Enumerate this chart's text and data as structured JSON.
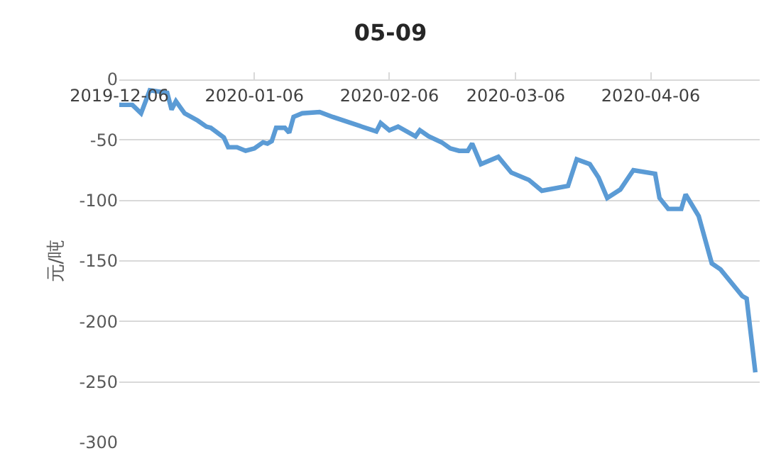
{
  "chart_data": {
    "type": "line",
    "title": "05-09",
    "ylabel": "元/吨",
    "x": [
      "2019-12-06",
      "2019-12-09",
      "2019-12-11",
      "2019-12-13",
      "2019-12-17",
      "2019-12-18",
      "2019-12-19",
      "2019-12-21",
      "2019-12-24",
      "2019-12-26",
      "2019-12-27",
      "2019-12-30",
      "2019-12-31",
      "2020-01-02",
      "2020-01-04",
      "2020-01-06",
      "2020-01-08",
      "2020-01-09",
      "2020-01-10",
      "2020-01-11",
      "2020-01-13",
      "2020-01-14",
      "2020-01-15",
      "2020-01-17",
      "2020-01-21",
      "2020-01-24",
      "2020-02-03",
      "2020-02-04",
      "2020-02-06",
      "2020-02-08",
      "2020-02-12",
      "2020-02-13",
      "2020-02-15",
      "2020-02-18",
      "2020-02-20",
      "2020-02-22",
      "2020-02-24",
      "2020-02-25",
      "2020-02-27",
      "2020-03-02",
      "2020-03-05",
      "2020-03-09",
      "2020-03-12",
      "2020-03-18",
      "2020-03-20",
      "2020-03-23",
      "2020-03-25",
      "2020-03-27",
      "2020-03-30",
      "2020-04-02",
      "2020-04-07",
      "2020-04-08",
      "2020-04-10",
      "2020-04-13",
      "2020-04-14",
      "2020-04-17",
      "2020-04-20",
      "2020-04-22",
      "2020-04-27",
      "2020-04-28",
      "2020-04-30"
    ],
    "series": [
      {
        "color": "#5b9bd5",
        "values": [
          -21,
          -21,
          -28,
          -9,
          -11,
          -25,
          -18,
          -28,
          -34,
          -39,
          -40,
          -48,
          -56,
          -56,
          -59,
          -57,
          -52,
          -53,
          -51,
          -40,
          -40,
          -44,
          -31,
          -28,
          -27,
          -31,
          -43,
          -36,
          -42,
          -39,
          -47,
          -42,
          -47,
          -52,
          -57,
          -59,
          -59,
          -53,
          -70,
          -64,
          -77,
          -83,
          -92,
          -88,
          -66,
          -70,
          -81,
          -98,
          -91,
          -75,
          -78,
          -98,
          -107,
          -107,
          -95,
          -113,
          -152,
          -157,
          -179,
          -181,
          -242
        ]
      }
    ],
    "xlim": [
      "2019-12-06",
      "2020-05-01"
    ],
    "xticks": [
      {
        "value": "2019-12-06",
        "label": "2019-12-06"
      },
      {
        "value": "2020-01-06",
        "label": "2020-01-06"
      },
      {
        "value": "2020-02-06",
        "label": "2020-02-06"
      },
      {
        "value": "2020-03-06",
        "label": "2020-03-06"
      },
      {
        "value": "2020-04-06",
        "label": "2020-04-06"
      }
    ],
    "ylim": [
      -300,
      0
    ],
    "yticks": [
      0,
      -50,
      -100,
      -150,
      -200,
      -250,
      -300
    ],
    "grid": "y",
    "marker": "none",
    "line_style": "solid"
  }
}
